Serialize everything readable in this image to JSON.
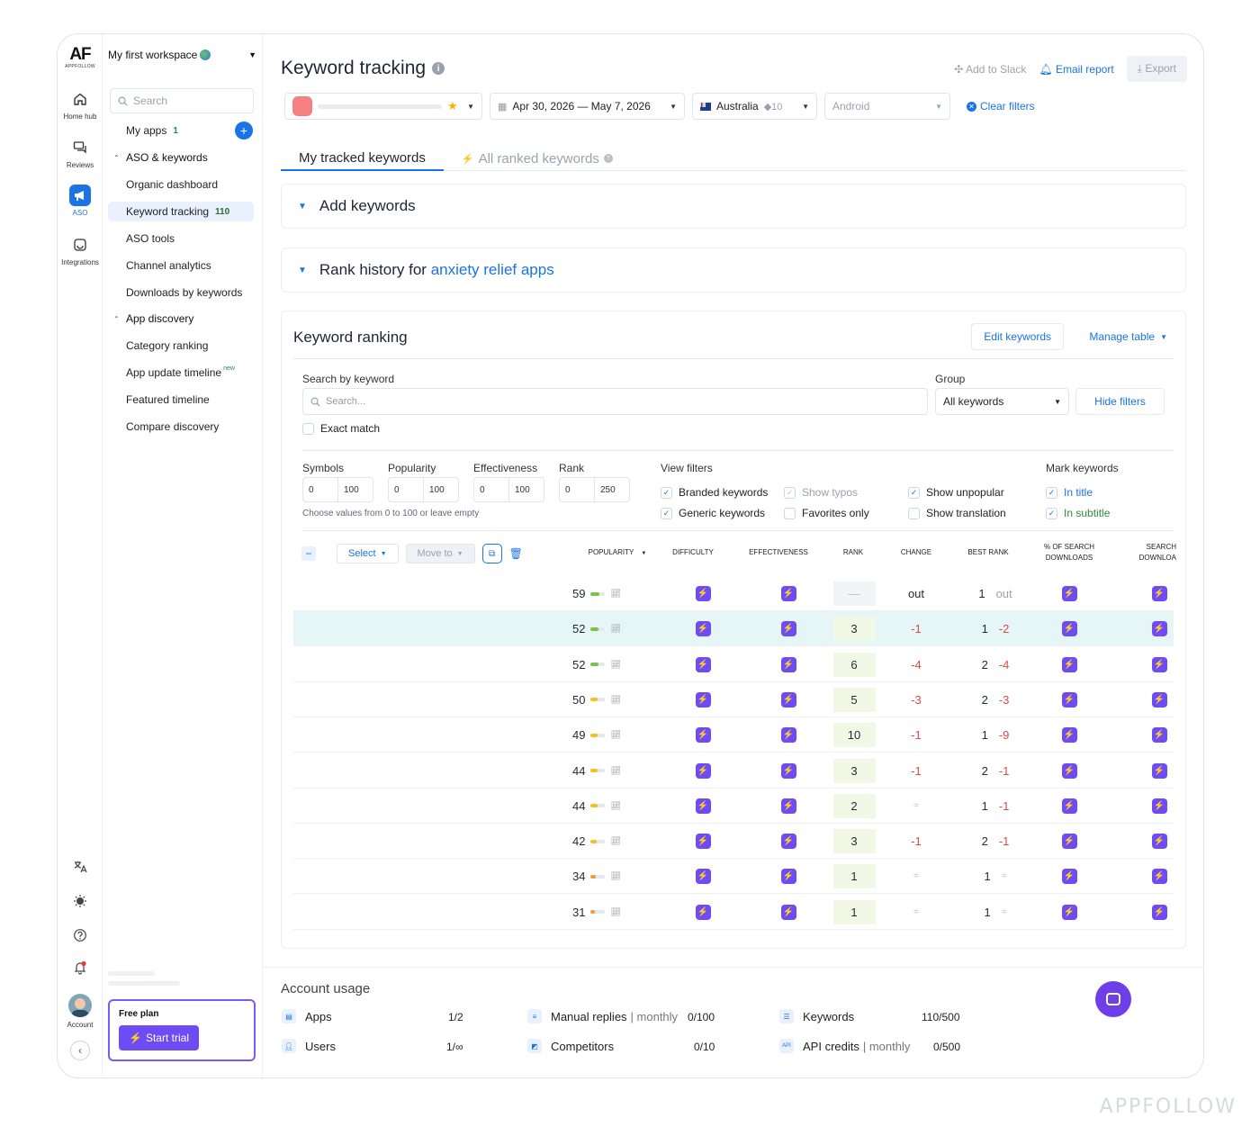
{
  "brand": {
    "logo": "AF",
    "logo_sub": "APPFOLLOW",
    "watermark": "APPFOLLOW",
    "accent": "#1a73e8",
    "purple": "#6e4cf5"
  },
  "rail": {
    "items": [
      {
        "label": "Home hub",
        "icon": "home-icon"
      },
      {
        "label": "Reviews",
        "icon": "chat-bubbles-icon"
      },
      {
        "label": "ASO",
        "icon": "megaphone-icon",
        "active": true
      },
      {
        "label": "Integrations",
        "icon": "plug-icon"
      }
    ],
    "account_label": "Account"
  },
  "sidebar": {
    "workspace": "My first workspace",
    "search_placeholder": "Search",
    "my_apps": {
      "label": "My apps",
      "count": "1"
    },
    "aso_group": "ASO & keywords",
    "aso_items": [
      {
        "label": "Organic dashboard"
      },
      {
        "label": "Keyword tracking",
        "count": "110",
        "active": true
      },
      {
        "label": "ASO tools"
      },
      {
        "label": "Channel analytics"
      },
      {
        "label": "Downloads by keywords"
      }
    ],
    "discovery_group": "App discovery",
    "discovery_items": [
      {
        "label": "Category ranking"
      },
      {
        "label": "App update timeline",
        "tag": "new"
      },
      {
        "label": "Featured timeline"
      },
      {
        "label": "Compare discovery"
      }
    ],
    "plan": {
      "label": "Free plan",
      "button": "Start trial"
    }
  },
  "header": {
    "title": "Keyword tracking",
    "add_to_slack": "Add to Slack",
    "email_report": "Email report",
    "export": "Export"
  },
  "filters": {
    "date_range": "Apr 30, 2026 — May 7, 2026",
    "country": "Australia",
    "country_count": "10",
    "platform": "Android",
    "clear": "Clear filters"
  },
  "tabs": [
    {
      "label": "My tracked keywords",
      "active": true
    },
    {
      "label": "All ranked keywords",
      "active": false
    }
  ],
  "add_keywords": "Add keywords",
  "rank_history": {
    "prefix": "Rank history for",
    "link": "anxiety relief apps"
  },
  "ranking": {
    "title": "Keyword ranking",
    "edit": "Edit keywords",
    "manage": "Manage table",
    "search_label": "Search by keyword",
    "search_placeholder": "Search...",
    "group_label": "Group",
    "group_value": "All keywords",
    "hide_filters": "Hide filters",
    "exact_match": "Exact match",
    "ranges": [
      {
        "label": "Symbols",
        "min": "0",
        "max": "100"
      },
      {
        "label": "Popularity",
        "min": "0",
        "max": "100"
      },
      {
        "label": "Effectiveness",
        "min": "0",
        "max": "100"
      },
      {
        "label": "Rank",
        "min": "0",
        "max": "250"
      }
    ],
    "range_hint": "Choose values from 0 to 100 or leave empty",
    "view_filters_label": "View filters",
    "view_filters": [
      {
        "label": "Branded keywords",
        "checked": true
      },
      {
        "label": "Show typos",
        "checked": true,
        "disabled": true
      },
      {
        "label": "Show unpopular",
        "checked": true
      },
      {
        "label": "Generic keywords",
        "checked": true
      },
      {
        "label": "Favorites only",
        "checked": false
      },
      {
        "label": "Show translation",
        "checked": false
      }
    ],
    "mark_label": "Mark keywords",
    "mark": [
      {
        "label": "In title",
        "checked": true
      },
      {
        "label": "In subtitle",
        "checked": true
      }
    ],
    "select": "Select",
    "move_to": "Move to",
    "columns": [
      "Popularity",
      "Difficulty",
      "Effectiveness",
      "Rank",
      "Change",
      "Best rank",
      "% of search downloads",
      "Search downloa"
    ],
    "rows": [
      {
        "popularity": "59",
        "pop_level": 0.59,
        "pop_color": "#7cc24a",
        "rank": "—",
        "change": "out",
        "best": "1",
        "best_change": "out",
        "highlight": false
      },
      {
        "popularity": "52",
        "pop_level": 0.52,
        "pop_color": "#7cc24a",
        "rank": "3",
        "change": "-1",
        "best": "1",
        "best_change": "-2",
        "highlight": true
      },
      {
        "popularity": "52",
        "pop_level": 0.52,
        "pop_color": "#7cc24a",
        "rank": "6",
        "change": "-4",
        "best": "2",
        "best_change": "-4",
        "highlight": false
      },
      {
        "popularity": "50",
        "pop_level": 0.5,
        "pop_color": "#f2c21b",
        "rank": "5",
        "change": "-3",
        "best": "2",
        "best_change": "-3",
        "highlight": false
      },
      {
        "popularity": "49",
        "pop_level": 0.49,
        "pop_color": "#f2c21b",
        "rank": "10",
        "change": "-1",
        "best": "1",
        "best_change": "-9",
        "highlight": false
      },
      {
        "popularity": "44",
        "pop_level": 0.44,
        "pop_color": "#f2c21b",
        "rank": "3",
        "change": "-1",
        "best": "2",
        "best_change": "-1",
        "highlight": false
      },
      {
        "popularity": "44",
        "pop_level": 0.44,
        "pop_color": "#f2c21b",
        "rank": "2",
        "change": "=",
        "best": "1",
        "best_change": "-1",
        "highlight": false
      },
      {
        "popularity": "42",
        "pop_level": 0.42,
        "pop_color": "#f2c21b",
        "rank": "3",
        "change": "-1",
        "best": "2",
        "best_change": "-1",
        "highlight": false
      },
      {
        "popularity": "34",
        "pop_level": 0.34,
        "pop_color": "#f29a3c",
        "rank": "1",
        "change": "=",
        "best": "1",
        "best_change": "=",
        "highlight": false
      },
      {
        "popularity": "31",
        "pop_level": 0.31,
        "pop_color": "#f29a3c",
        "rank": "1",
        "change": "=",
        "best": "1",
        "best_change": "=",
        "highlight": false
      }
    ]
  },
  "usage": {
    "title": "Account usage",
    "apps": {
      "label": "Apps",
      "value": "1/2"
    },
    "users": {
      "label": "Users",
      "value": "1/∞"
    },
    "manual_replies": {
      "label": "Manual replies",
      "sub": "| monthly",
      "value": "0/100"
    },
    "competitors": {
      "label": "Competitors",
      "value": "0/10"
    },
    "keywords": {
      "label": "Keywords",
      "value": "110/500"
    },
    "api_credits": {
      "label": "API credits",
      "sub": "| monthly",
      "value": "0/500"
    }
  }
}
